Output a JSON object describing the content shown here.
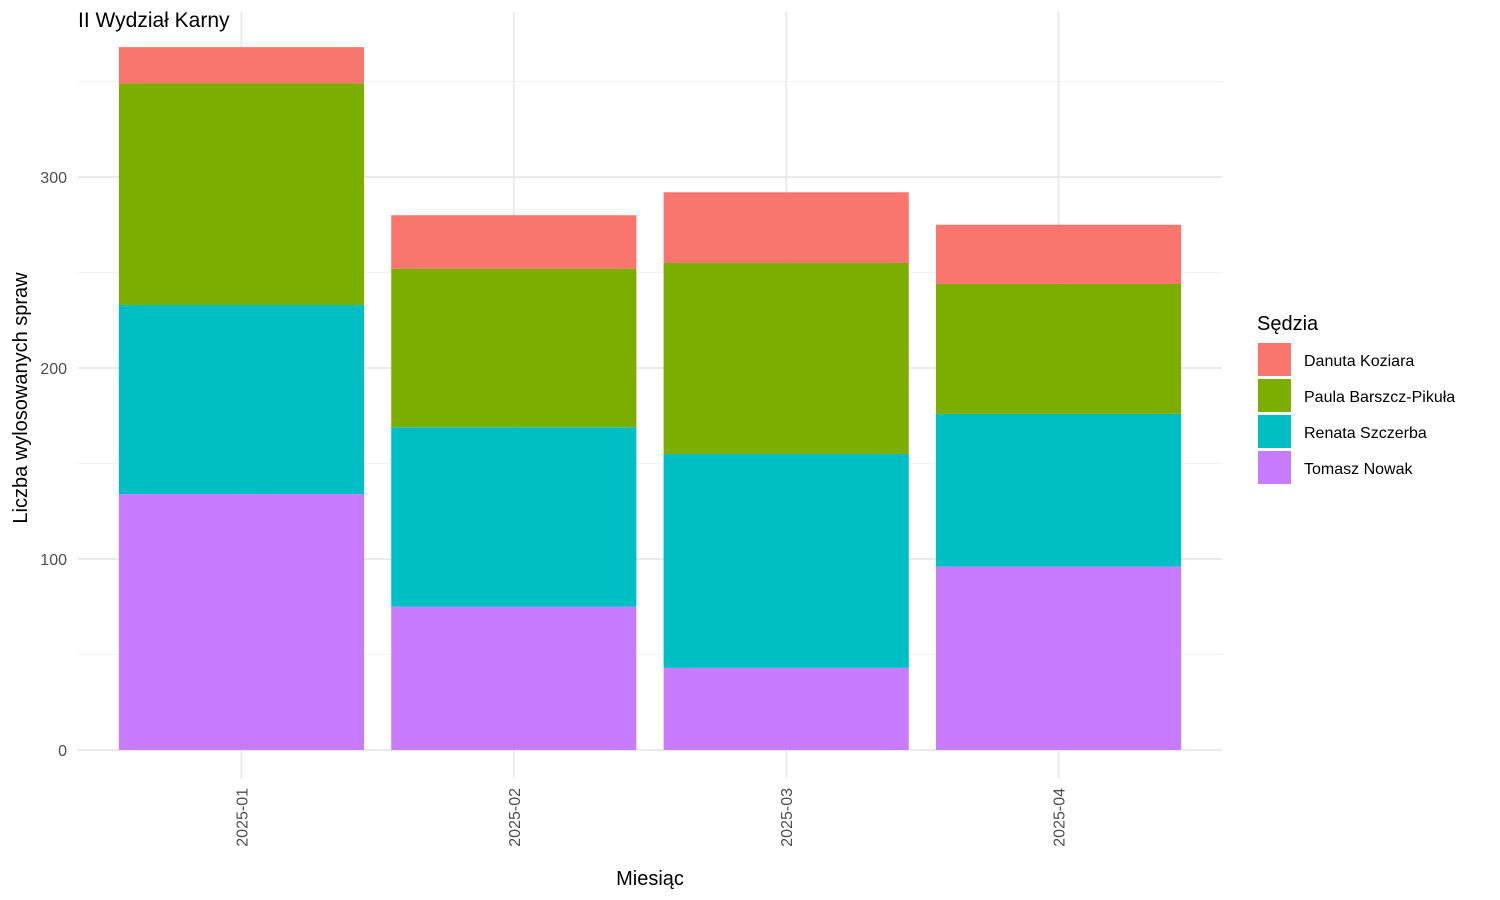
{
  "chart_data": {
    "type": "bar",
    "stacked": true,
    "title": "II Wydział Karny",
    "xlabel": "Miesiąc",
    "ylabel": "Liczba wylosowanych spraw",
    "categories": [
      "2025-01",
      "2025-02",
      "2025-03",
      "2025-04"
    ],
    "ylim": [
      0,
      375
    ],
    "yticks": [
      0,
      100,
      200,
      300
    ],
    "grid": true,
    "legend": {
      "title": "Sędzia",
      "position": "right"
    },
    "series": [
      {
        "name": "Tomasz Nowak",
        "color": "#C77CFF",
        "values": [
          134,
          75,
          43,
          96
        ]
      },
      {
        "name": "Renata Szczerba",
        "color": "#00BFC4",
        "values": [
          99,
          94,
          112,
          80
        ]
      },
      {
        "name": "Paula Barszcz-Pikuła",
        "color": "#7CAE00",
        "values": [
          116,
          83,
          100,
          68
        ]
      },
      {
        "name": "Danuta Koziara",
        "color": "#F8766D",
        "values": [
          19,
          28,
          37,
          31
        ]
      }
    ],
    "legend_order": [
      "Danuta Koziara",
      "Paula Barszcz-Pikuła",
      "Renata Szczerba",
      "Tomasz Nowak"
    ]
  }
}
